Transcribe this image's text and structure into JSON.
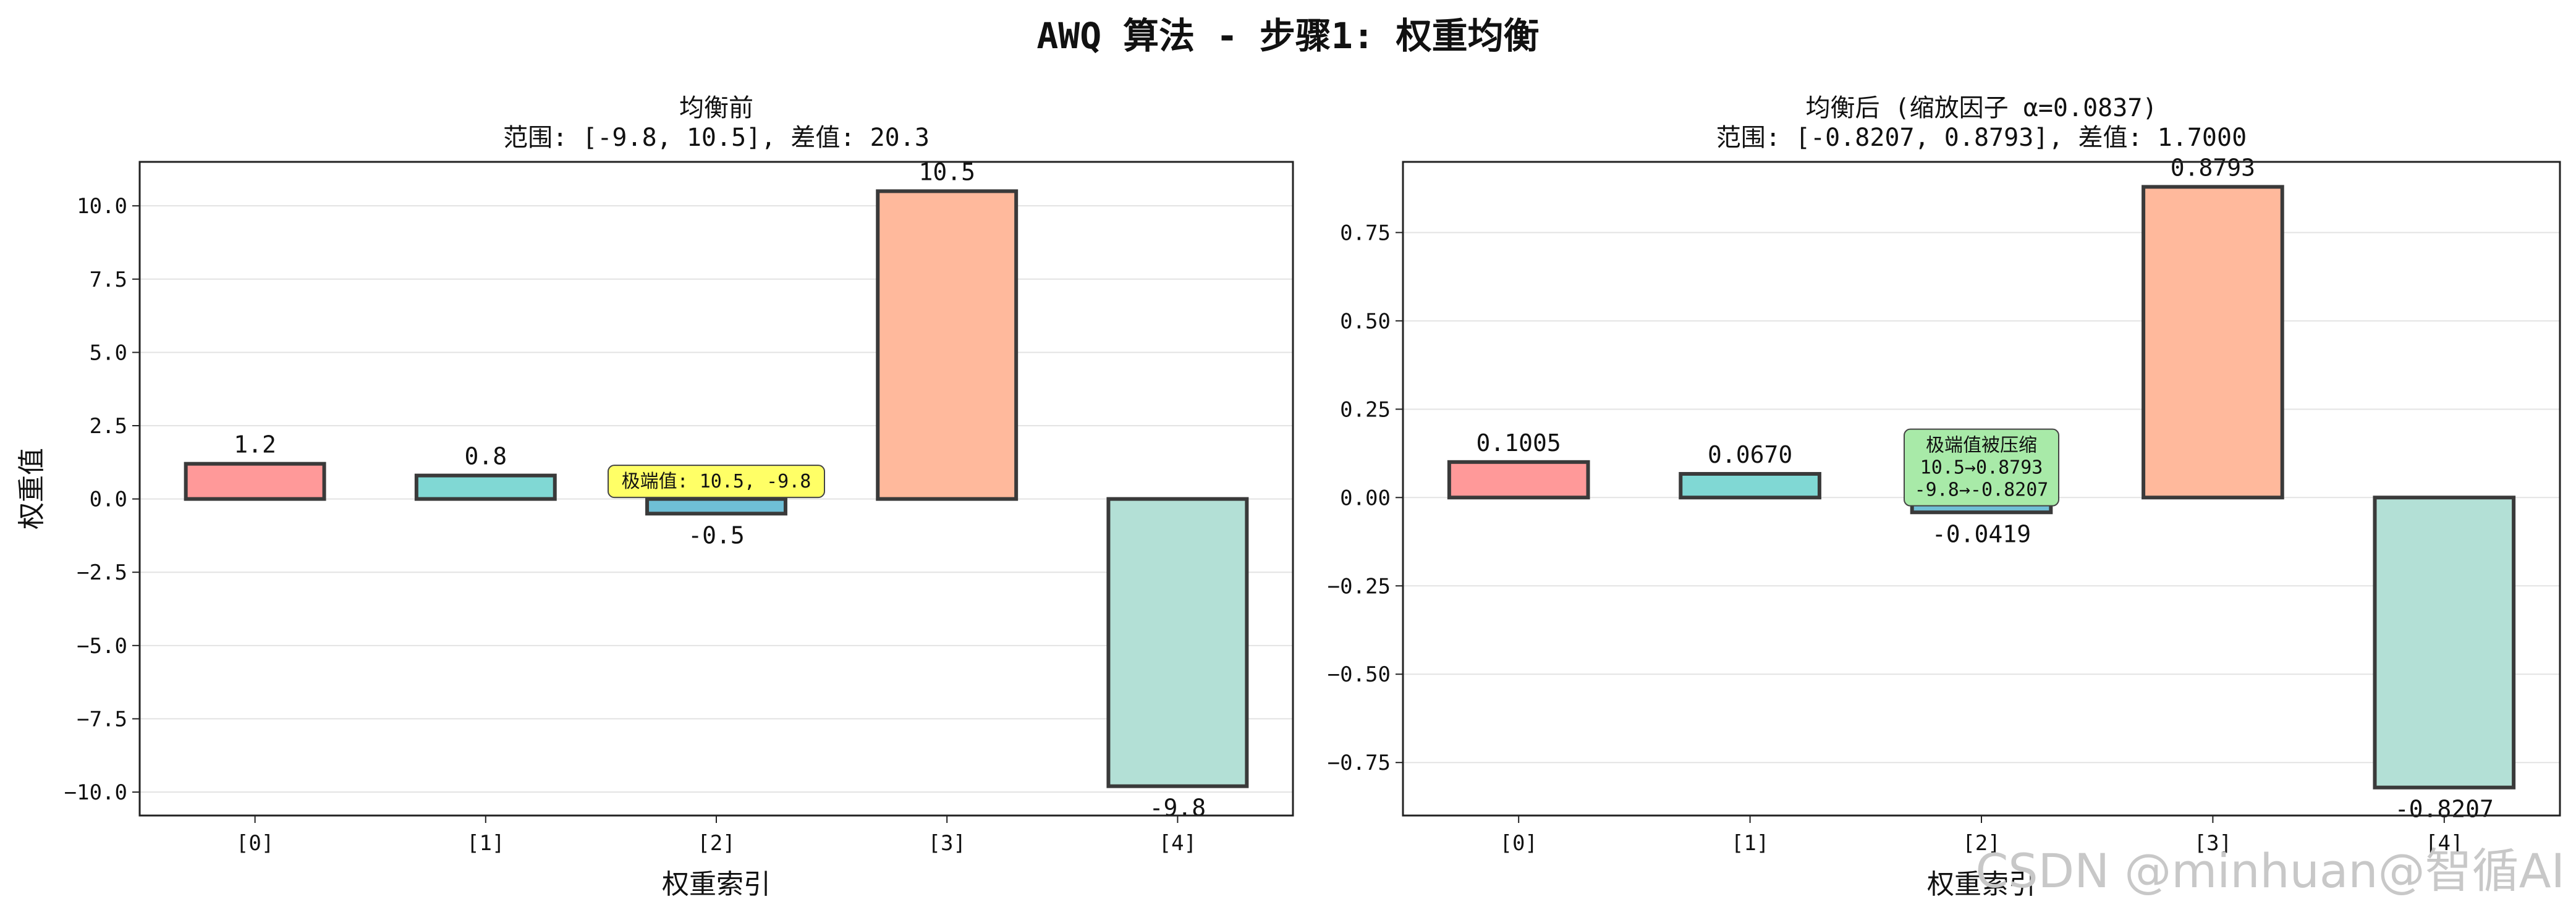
{
  "suptitle": "AWQ 算法 - 步骤1: 权重均衡",
  "watermark": "CSDN @minhuan@智循AI",
  "chart_data": [
    {
      "type": "bar",
      "title": "均衡前",
      "subtitle": "范围: [-9.8, 10.5], 差值: 20.3",
      "xlabel": "权重索引",
      "ylabel": "权重值",
      "categories": [
        "[0]",
        "[1]",
        "[2]",
        "[3]",
        "[4]"
      ],
      "values": [
        1.2,
        0.8,
        -0.5,
        10.5,
        -9.8
      ],
      "value_labels": [
        "1.2",
        "0.8",
        "-0.5",
        "10.5",
        "-9.8"
      ],
      "colors": [
        "#ff9999",
        "#80d8d4",
        "#6fbfd6",
        "#ffb99c",
        "#b3e0d6"
      ],
      "ylim": [
        -10.8,
        11.5
      ],
      "yticks": [
        10.0,
        7.5,
        5.0,
        2.5,
        0.0,
        -2.5,
        -5.0,
        -7.5,
        -10.0
      ],
      "ytick_labels": [
        "10.0",
        "7.5",
        "5.0",
        "2.5",
        "0.0",
        "−2.5",
        "−5.0",
        "−7.5",
        "−10.0"
      ],
      "grid": "y",
      "annotation": {
        "lines": [
          "极端值: 10.5, -9.8"
        ],
        "x_index": 2,
        "y": 0.6,
        "bg": "#ffff66"
      }
    },
    {
      "type": "bar",
      "title": "均衡后 (缩放因子 α=0.0837)",
      "subtitle": "范围: [-0.8207, 0.8793], 差值: 1.7000",
      "xlabel": "权重索引",
      "ylabel": "",
      "categories": [
        "[0]",
        "[1]",
        "[2]",
        "[3]",
        "[4]"
      ],
      "values": [
        0.1005,
        0.067,
        -0.0419,
        0.8793,
        -0.8207
      ],
      "value_labels": [
        "0.1005",
        "0.0670",
        "-0.0419",
        "0.8793",
        "-0.8207"
      ],
      "colors": [
        "#ff9999",
        "#80d8d4",
        "#6fbfd6",
        "#ffb99c",
        "#b3e0d6"
      ],
      "ylim": [
        -0.9,
        0.95
      ],
      "yticks": [
        0.75,
        0.5,
        0.25,
        0.0,
        -0.25,
        -0.5,
        -0.75
      ],
      "ytick_labels": [
        "0.75",
        "0.50",
        "0.25",
        "0.00",
        "−0.25",
        "−0.50",
        "−0.75"
      ],
      "grid": "y",
      "annotation": {
        "lines": [
          "极端值被压缩",
          "10.5→0.8793",
          "-9.8→-0.8207"
        ],
        "x_index": 2,
        "y": 0.085,
        "bg": "#a8eaa8"
      }
    }
  ]
}
